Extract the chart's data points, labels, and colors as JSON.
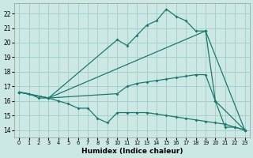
{
  "xlabel": "Humidex (Indice chaleur)",
  "bg_color": "#cce8e4",
  "grid_color": "#aacfcb",
  "line_color": "#1a7a6e",
  "line_width": 0.9,
  "marker": "D",
  "marker_size": 2.0,
  "xlim": [
    -0.5,
    23.5
  ],
  "ylim": [
    13.5,
    22.7
  ],
  "xticks": [
    0,
    1,
    2,
    3,
    4,
    5,
    6,
    7,
    8,
    9,
    10,
    11,
    12,
    13,
    14,
    15,
    16,
    17,
    18,
    19,
    20,
    21,
    22,
    23
  ],
  "yticks": [
    14,
    15,
    16,
    17,
    18,
    19,
    20,
    21,
    22
  ],
  "lines": [
    {
      "x": [
        0,
        3,
        10,
        11,
        12,
        13,
        14,
        15,
        16,
        17,
        18,
        19,
        23
      ],
      "y": [
        16.6,
        16.2,
        20.2,
        19.8,
        20.5,
        21.2,
        21.5,
        22.3,
        21.8,
        21.5,
        20.8,
        20.8,
        14.0
      ]
    },
    {
      "x": [
        0,
        3,
        19,
        20,
        23
      ],
      "y": [
        16.6,
        16.2,
        20.8,
        16.0,
        14.0
      ]
    },
    {
      "x": [
        0,
        3,
        10,
        11,
        12,
        13,
        14,
        15,
        16,
        17,
        18,
        19,
        20,
        21,
        22,
        23
      ],
      "y": [
        16.6,
        16.2,
        16.5,
        17.0,
        17.2,
        17.3,
        17.4,
        17.5,
        17.6,
        17.7,
        17.8,
        17.8,
        16.0,
        14.2,
        14.2,
        14.0
      ]
    },
    {
      "x": [
        0,
        1,
        2,
        3,
        4,
        5,
        6,
        7,
        8,
        9,
        10,
        11,
        12,
        13,
        14,
        15,
        16,
        17,
        18,
        19,
        20,
        21,
        22,
        23
      ],
      "y": [
        16.6,
        16.5,
        16.2,
        16.2,
        16.0,
        15.8,
        15.5,
        15.5,
        14.8,
        14.5,
        15.2,
        15.2,
        15.2,
        15.2,
        15.1,
        15.0,
        14.9,
        14.8,
        14.7,
        14.6,
        14.5,
        14.4,
        14.2,
        14.0
      ]
    }
  ]
}
